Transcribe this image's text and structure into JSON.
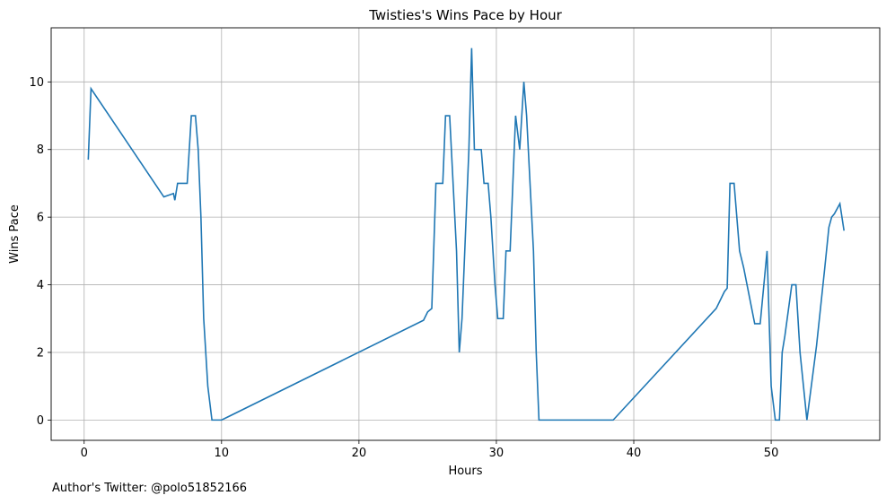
{
  "footnote": "Author's Twitter: @polo51852166",
  "chart_data": {
    "type": "line",
    "title": "Twisties's Wins Pace by Hour",
    "xlabel": "Hours",
    "ylabel": "Wins Pace",
    "xlim": [
      -2.4,
      57.9
    ],
    "ylim": [
      -0.6,
      11.6
    ],
    "xticks": [
      0,
      10,
      20,
      30,
      40,
      50
    ],
    "yticks": [
      0,
      2,
      4,
      6,
      8,
      10
    ],
    "grid": true,
    "legend": "none",
    "line_color": "#1f77b4",
    "series": [
      {
        "x": [
          0.3,
          0.5,
          5.8,
          6.5,
          6.6,
          6.8,
          7.5,
          7.8,
          8.1,
          8.3,
          8.5,
          8.7,
          9.0,
          9.3,
          10.0,
          24.7,
          25.0,
          25.3,
          25.6,
          26.1,
          26.3,
          26.6,
          27.1,
          27.3,
          27.5,
          28.0,
          28.2,
          28.4,
          28.9,
          29.1,
          29.4,
          29.6,
          29.9,
          30.1,
          30.2,
          30.5,
          30.7,
          31.0,
          31.4,
          31.7,
          32.0,
          32.2,
          32.7,
          32.9,
          33.1,
          33.3,
          38.5,
          46.0,
          46.6,
          46.8,
          47.0,
          47.3,
          47.7,
          48.0,
          48.8,
          49.2,
          49.7,
          50.0,
          50.3,
          50.6,
          50.8,
          51.0,
          51.5,
          51.8,
          52.1,
          52.6,
          53.3,
          53.9,
          54.2,
          54.4,
          54.6,
          55.0,
          55.3
        ],
        "y": [
          7.7,
          9.8,
          6.6,
          6.7,
          6.5,
          7.0,
          7.0,
          9.0,
          9.0,
          8.0,
          6.0,
          3.0,
          1.0,
          0.0,
          0.0,
          2.95,
          3.2,
          3.3,
          7.0,
          7.0,
          9.0,
          9.0,
          5.0,
          2.0,
          3.0,
          8.0,
          11.0,
          8.0,
          8.0,
          7.0,
          7.0,
          6.0,
          4.0,
          3.0,
          3.0,
          3.0,
          5.0,
          5.0,
          9.0,
          8.0,
          10.0,
          9.0,
          5.0,
          2.0,
          0.0,
          0.0,
          0.0,
          3.3,
          3.8,
          3.9,
          7.0,
          7.0,
          5.0,
          4.5,
          2.85,
          2.85,
          5.0,
          1.0,
          0.0,
          0.0,
          2.0,
          2.5,
          4.0,
          4.0,
          2.0,
          0.0,
          2.2,
          4.5,
          5.7,
          6.0,
          6.1,
          6.4,
          5.6
        ]
      }
    ]
  }
}
